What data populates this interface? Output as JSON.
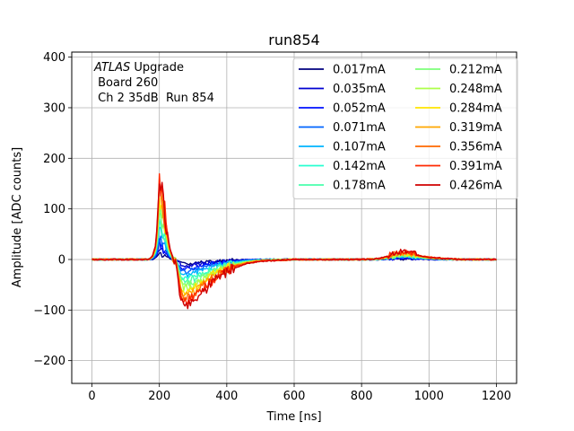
{
  "chart_data": {
    "type": "line",
    "title": "run854",
    "xlabel": "Time [ns]",
    "ylabel": "Amplitude [ADC counts]",
    "xlim": [
      -60,
      1260
    ],
    "ylim": [
      -245,
      410
    ],
    "xticks": [
      0,
      200,
      400,
      600,
      800,
      1000,
      1200
    ],
    "yticks": [
      -200,
      -100,
      0,
      100,
      200,
      300,
      400
    ],
    "grid": true,
    "legend_placement": "top-right",
    "legend_columns": 2,
    "annotation": {
      "italic": "ATLAS",
      "line1_rest": " Upgrade",
      "line2": " Board 260",
      "line3": " Ch 2 35dB  Run 854"
    },
    "pulse_shape": {
      "x": [
        0,
        170,
        180,
        190,
        195,
        200,
        205,
        210,
        215,
        220,
        225,
        230,
        240,
        250,
        258,
        265,
        275,
        285,
        300,
        320,
        350,
        380,
        420,
        460,
        500,
        550,
        600,
        650,
        700,
        750,
        800,
        850,
        870,
        890,
        910,
        930,
        950,
        970,
        1000,
        1050,
        1100,
        1150,
        1200
      ],
      "y_per_peak": [
        0,
        0,
        0.05,
        0.2,
        0.55,
        1.0,
        0.9,
        0.78,
        0.62,
        0.45,
        0.3,
        0.15,
        0.03,
        -0.05,
        -0.32,
        -0.48,
        -0.55,
        -0.55,
        -0.5,
        -0.42,
        -0.3,
        -0.2,
        -0.1,
        -0.05,
        -0.02,
        -0.01,
        0,
        0,
        0,
        0,
        0,
        0.01,
        0.03,
        0.06,
        0.09,
        0.1,
        0.08,
        0.05,
        0.03,
        0.01,
        0,
        0,
        0
      ]
    },
    "series": [
      {
        "name": "0.017mA",
        "color": "#00007f",
        "peak": 14
      },
      {
        "name": "0.035mA",
        "color": "#0000d1",
        "peak": 22
      },
      {
        "name": "0.052mA",
        "color": "#0010ff",
        "peak": 32
      },
      {
        "name": "0.071mA",
        "color": "#0064ff",
        "peak": 42
      },
      {
        "name": "0.107mA",
        "color": "#00b4ff",
        "peak": 55
      },
      {
        "name": "0.142mA",
        "color": "#26ffd0",
        "peak": 68
      },
      {
        "name": "0.178mA",
        "color": "#49ffad",
        "peak": 80
      },
      {
        "name": "0.212mA",
        "color": "#7dff7a",
        "peak": 92
      },
      {
        "name": "0.248mA",
        "color": "#adff49",
        "peak": 104
      },
      {
        "name": "0.284mA",
        "color": "#ffe500",
        "peak": 116
      },
      {
        "name": "0.319mA",
        "color": "#ffa700",
        "peak": 128
      },
      {
        "name": "0.356mA",
        "color": "#ff6800",
        "peak": 140
      },
      {
        "name": "0.391mA",
        "color": "#ff2900",
        "peak": 152
      },
      {
        "name": "0.426mA",
        "color": "#d10000",
        "peak": 164
      }
    ]
  }
}
